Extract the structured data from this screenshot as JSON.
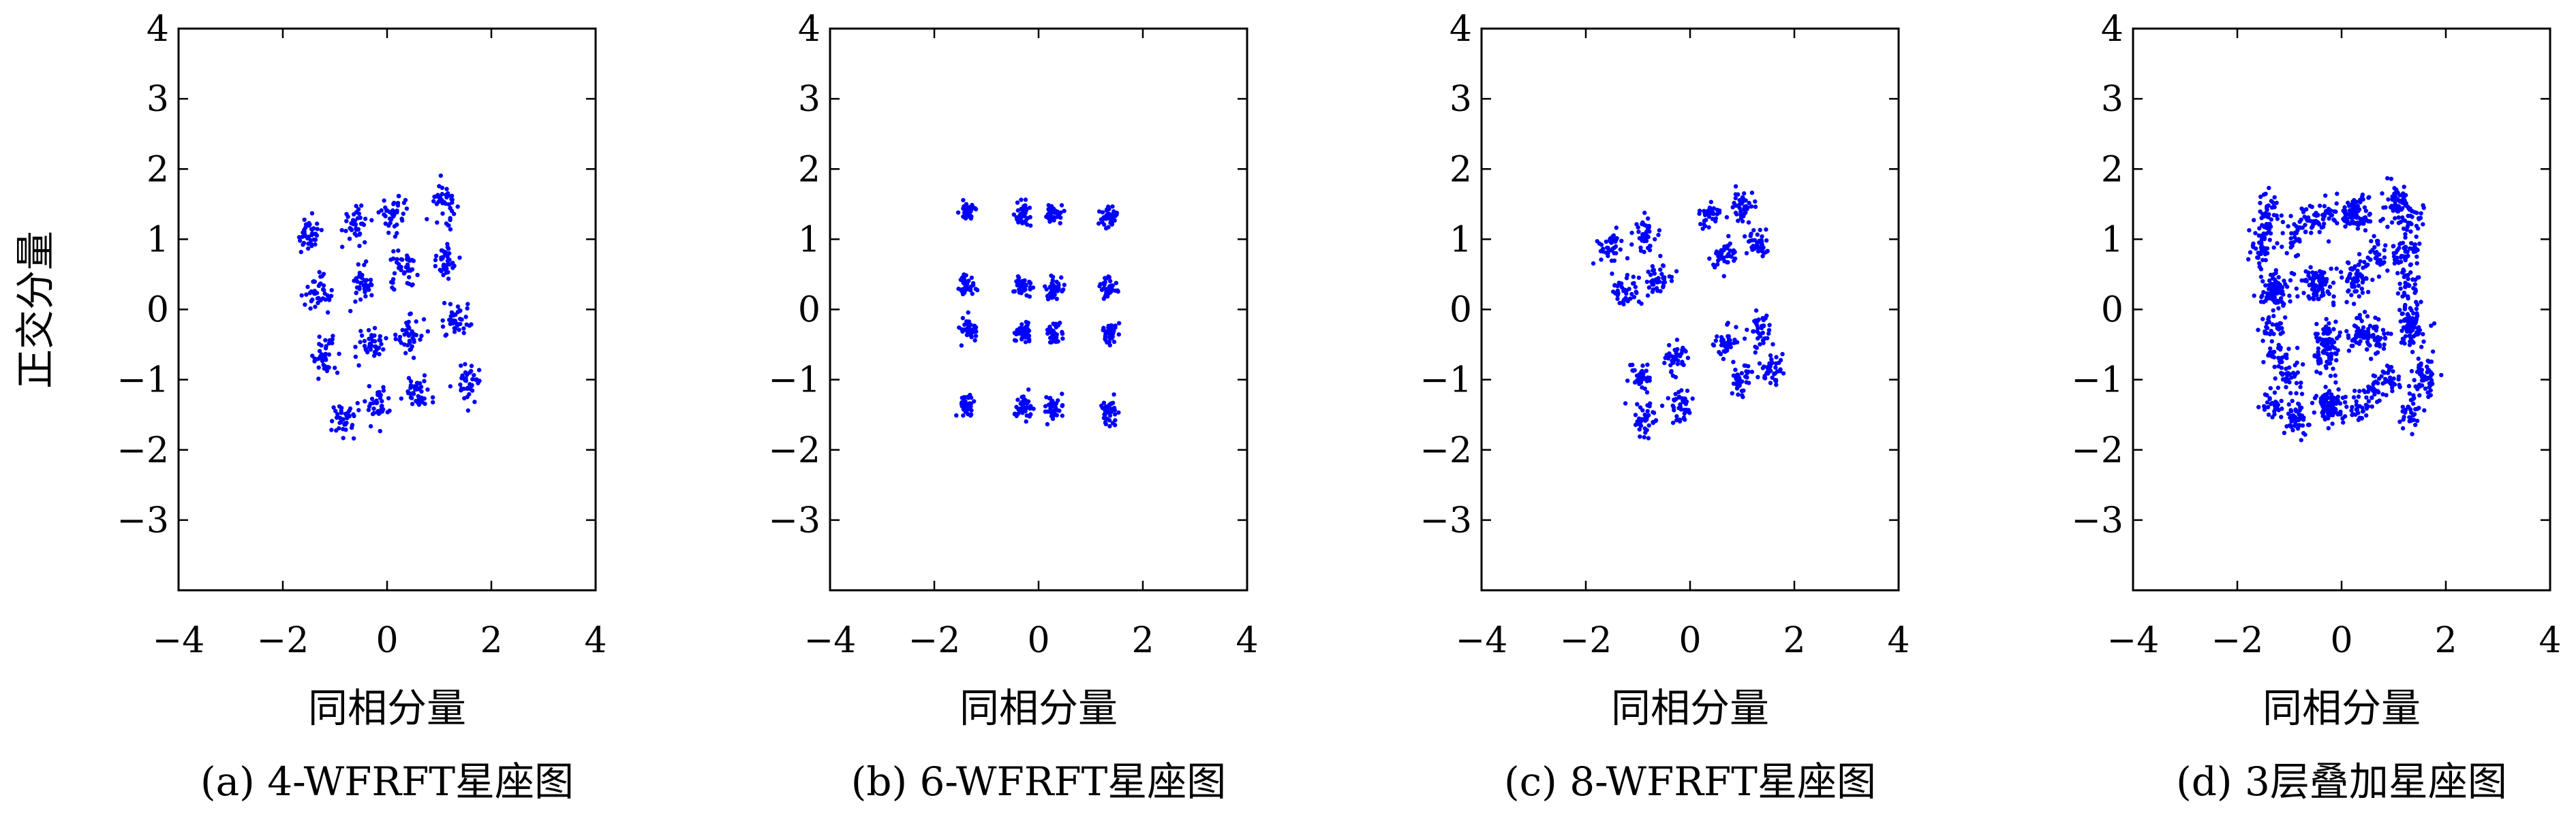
{
  "figure": {
    "shared_ylabel": "正交分量"
  },
  "chart_data": [
    {
      "type": "scatter",
      "caption": "(a) 4-WFRFT星座图",
      "xlabel": "同相分量",
      "ylabel": "正交分量",
      "xlim": [
        -4,
        4
      ],
      "ylim": [
        -4,
        4
      ],
      "xticks": [
        "−4",
        "−2",
        "0",
        "2",
        "4"
      ],
      "yticks": [
        "4",
        "3",
        "2",
        "1",
        "0",
        "−1",
        "−2",
        "−3"
      ],
      "marker_color": "#0000ff",
      "spread": 0.13,
      "points_per_cluster": 40,
      "cluster_centers": [
        [
          -1.5,
          1.05
        ],
        [
          -0.6,
          1.25
        ],
        [
          0.15,
          1.35
        ],
        [
          1.1,
          1.55
        ],
        [
          -1.35,
          0.2
        ],
        [
          -0.45,
          0.35
        ],
        [
          0.3,
          0.55
        ],
        [
          1.15,
          0.7
        ],
        [
          -1.2,
          -0.65
        ],
        [
          -0.3,
          -0.5
        ],
        [
          0.45,
          -0.35
        ],
        [
          1.35,
          -0.15
        ],
        [
          -0.85,
          -1.55
        ],
        [
          -0.2,
          -1.35
        ],
        [
          0.6,
          -1.2
        ],
        [
          1.55,
          -1.05
        ]
      ]
    },
    {
      "type": "scatter",
      "caption": "(b) 6-WFRFT星座图",
      "xlabel": "同相分量",
      "ylabel": "",
      "xlim": [
        -4,
        4
      ],
      "ylim": [
        -4,
        4
      ],
      "xticks": [
        "−4",
        "−2",
        "0",
        "2",
        "4"
      ],
      "yticks": [
        "4",
        "3",
        "2",
        "1",
        "0",
        "−1",
        "−2",
        "−3"
      ],
      "marker_color": "#0000ff",
      "spread": 0.08,
      "points_per_cluster": 40,
      "cluster_centers": [
        [
          -1.35,
          1.4
        ],
        [
          -0.3,
          1.35
        ],
        [
          0.3,
          1.35
        ],
        [
          1.35,
          1.3
        ],
        [
          -1.35,
          0.35
        ],
        [
          -0.3,
          0.35
        ],
        [
          0.3,
          0.3
        ],
        [
          1.35,
          0.3
        ],
        [
          -1.35,
          -0.3
        ],
        [
          -0.3,
          -0.35
        ],
        [
          0.3,
          -0.35
        ],
        [
          1.35,
          -0.35
        ],
        [
          -1.35,
          -1.35
        ],
        [
          -0.3,
          -1.4
        ],
        [
          0.3,
          -1.4
        ],
        [
          1.35,
          -1.45
        ]
      ]
    },
    {
      "type": "scatter",
      "caption": "(c) 8-WFRFT星座图",
      "xlabel": "同相分量",
      "ylabel": "",
      "xlim": [
        -4,
        4
      ],
      "ylim": [
        -4,
        4
      ],
      "xticks": [
        "−4",
        "−2",
        "0",
        "2",
        "4"
      ],
      "yticks": [
        "4",
        "3",
        "2",
        "1",
        "0",
        "−1",
        "−2",
        "−3"
      ],
      "marker_color": "#0000ff",
      "spread": 0.12,
      "points_per_cluster": 40,
      "cluster_centers": [
        [
          -1.55,
          0.85
        ],
        [
          -0.9,
          1.05
        ],
        [
          -1.25,
          0.25
        ],
        [
          -0.6,
          0.4
        ],
        [
          0.35,
          1.35
        ],
        [
          1.0,
          1.5
        ],
        [
          0.65,
          0.75
        ],
        [
          1.3,
          0.9
        ],
        [
          -0.95,
          -0.95
        ],
        [
          -0.3,
          -0.7
        ],
        [
          -0.85,
          -1.55
        ],
        [
          -0.2,
          -1.35
        ],
        [
          0.7,
          -0.45
        ],
        [
          1.35,
          -0.25
        ],
        [
          0.95,
          -1.0
        ],
        [
          1.55,
          -0.85
        ]
      ]
    },
    {
      "type": "scatter",
      "caption": "(d) 3层叠加星座图",
      "xlabel": "同相分量",
      "ylabel": "",
      "xlim": [
        -4,
        4
      ],
      "ylim": [
        -4,
        4
      ],
      "xticks": [
        "−4",
        "−2",
        "0",
        "2",
        "4"
      ],
      "yticks": [
        "4",
        "3",
        "2",
        "1",
        "0",
        "−1",
        "−2",
        "−3"
      ],
      "marker_color": "#0000ff",
      "spread": 0.12,
      "points_per_cluster": 30,
      "cluster_centers": [
        [
          -1.5,
          1.05
        ],
        [
          -0.6,
          1.25
        ],
        [
          0.15,
          1.35
        ],
        [
          1.1,
          1.55
        ],
        [
          -1.35,
          0.2
        ],
        [
          -0.45,
          0.35
        ],
        [
          0.3,
          0.55
        ],
        [
          1.15,
          0.7
        ],
        [
          -1.2,
          -0.65
        ],
        [
          -0.3,
          -0.5
        ],
        [
          0.45,
          -0.35
        ],
        [
          1.35,
          -0.15
        ],
        [
          -0.85,
          -1.55
        ],
        [
          -0.2,
          -1.35
        ],
        [
          0.6,
          -1.2
        ],
        [
          1.55,
          -1.05
        ],
        [
          -1.35,
          1.4
        ],
        [
          -0.3,
          1.35
        ],
        [
          0.3,
          1.35
        ],
        [
          1.35,
          1.3
        ],
        [
          -1.35,
          0.35
        ],
        [
          -0.3,
          0.35
        ],
        [
          0.3,
          0.3
        ],
        [
          1.35,
          0.3
        ],
        [
          -1.35,
          -0.3
        ],
        [
          -0.3,
          -0.35
        ],
        [
          0.3,
          -0.35
        ],
        [
          1.35,
          -0.35
        ],
        [
          -1.35,
          -1.35
        ],
        [
          -0.3,
          -1.4
        ],
        [
          0.3,
          -1.4
        ],
        [
          1.35,
          -1.45
        ],
        [
          -1.55,
          0.85
        ],
        [
          -0.9,
          1.05
        ],
        [
          -1.25,
          0.25
        ],
        [
          -0.6,
          0.4
        ],
        [
          0.35,
          1.35
        ],
        [
          1.0,
          1.5
        ],
        [
          0.65,
          0.75
        ],
        [
          1.3,
          0.9
        ],
        [
          -0.95,
          -0.95
        ],
        [
          -0.3,
          -0.7
        ],
        [
          -0.85,
          -1.55
        ],
        [
          -0.2,
          -1.35
        ],
        [
          0.7,
          -0.45
        ],
        [
          1.35,
          -0.25
        ],
        [
          0.95,
          -1.0
        ],
        [
          1.55,
          -0.85
        ]
      ]
    }
  ]
}
